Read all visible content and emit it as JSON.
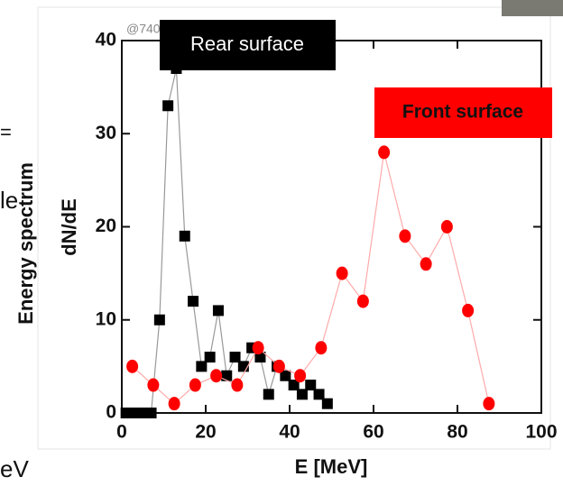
{
  "chart_data": {
    "type": "line",
    "watermark": "@740",
    "cropped_text": [
      "=",
      "le",
      "eV"
    ],
    "y_title": "Energy spectrum",
    "ylabel": "dN/dE",
    "xlabel": "E [MeV]",
    "xlim": [
      0,
      100
    ],
    "xticks": [
      0,
      20,
      40,
      60,
      80,
      100
    ],
    "ylim": [
      0,
      40
    ],
    "yticks": [
      0,
      10,
      20,
      30,
      40
    ],
    "series": [
      {
        "name": "Rear surface",
        "color": "#000000",
        "marker": "square",
        "x": [
          1,
          3,
          5,
          7,
          9,
          11,
          13,
          15,
          17,
          19,
          21,
          23,
          25,
          27,
          29,
          31,
          33,
          35,
          37,
          39,
          41,
          43,
          45,
          47,
          49
        ],
        "values": [
          0,
          0,
          0,
          0,
          10,
          33,
          37,
          19,
          12,
          5,
          6,
          11,
          4,
          6,
          5,
          7,
          6,
          2,
          5,
          4,
          3,
          2,
          3,
          2,
          1
        ]
      },
      {
        "name": "Front surface",
        "color": "#ff0000",
        "marker": "circle",
        "x": [
          2.5,
          7.5,
          12.5,
          17.5,
          22.5,
          27.5,
          32.5,
          37.5,
          42.5,
          47.5,
          52.5,
          57.5,
          62.5,
          67.5,
          72.5,
          77.5,
          82.5,
          87.5
        ],
        "values": [
          5,
          3,
          1,
          3,
          4,
          3,
          7,
          5,
          4,
          7,
          15,
          12,
          28,
          19,
          16,
          20,
          11,
          1
        ]
      }
    ]
  }
}
